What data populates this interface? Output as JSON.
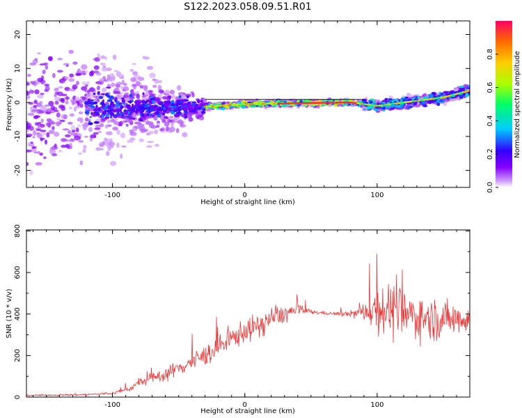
{
  "title": "S122.2023.058.09.51.R01",
  "chart_data": [
    {
      "type": "heatmap",
      "xlabel": "Height of straight line (km)",
      "ylabel": "Frequency (Hz)",
      "xlim": [
        -165,
        170
      ],
      "ylim": [
        -25,
        24
      ],
      "xticks": [
        -100,
        0,
        100
      ],
      "yticks": [
        -20,
        -10,
        0,
        10,
        20
      ],
      "colorbar": {
        "label": "Normalized spectral amplitude",
        "range": [
          0,
          1
        ],
        "ticks": [
          0.0,
          0.2,
          0.4,
          0.6,
          0.8
        ],
        "colormap": [
          "#ffffff",
          "#8800ff",
          "#3300ff",
          "#00ccff",
          "#00ff66",
          "#aaff00",
          "#ffcc00",
          "#ff6600",
          "#ff0066"
        ]
      },
      "ridge": {
        "x": [
          -165,
          -120,
          -80,
          -40,
          -20,
          0,
          40,
          80,
          100,
          120,
          150,
          170
        ],
        "frequency": [
          -2,
          -1.5,
          -1.5,
          -1.5,
          -1,
          -0.5,
          -0.2,
          0,
          -1,
          0,
          1.5,
          3.5
        ]
      },
      "grid": false
    },
    {
      "type": "line",
      "xlabel": "Height of straight line (km)",
      "ylabel": "SNR (10 * v/v)",
      "xlim": [
        -165,
        170
      ],
      "ylim": [
        0,
        805
      ],
      "xticks": [
        -100,
        0,
        100
      ],
      "yticks": [
        0,
        200,
        400,
        600,
        800
      ],
      "color": "#ee3333",
      "series": [
        {
          "x": [
            -165,
            -140,
            -120,
            -100,
            -85,
            -80,
            -60,
            -40,
            -30,
            -20,
            -10,
            0,
            10,
            20,
            30,
            40,
            50,
            60,
            70,
            80,
            90,
            95,
            100,
            110,
            120,
            130,
            140,
            150,
            160,
            170
          ],
          "mean": [
            8,
            10,
            12,
            18,
            45,
            70,
            110,
            170,
            200,
            240,
            280,
            320,
            340,
            380,
            400,
            420,
            410,
            405,
            400,
            400,
            410,
            420,
            430,
            420,
            400,
            390,
            380,
            370,
            380,
            380
          ],
          "spread": [
            6,
            8,
            10,
            12,
            25,
            35,
            60,
            80,
            90,
            95,
            100,
            110,
            100,
            100,
            80,
            60,
            20,
            15,
            15,
            30,
            80,
            150,
            220,
            250,
            230,
            200,
            180,
            170,
            150,
            130
          ]
        }
      ],
      "grid": false
    }
  ]
}
